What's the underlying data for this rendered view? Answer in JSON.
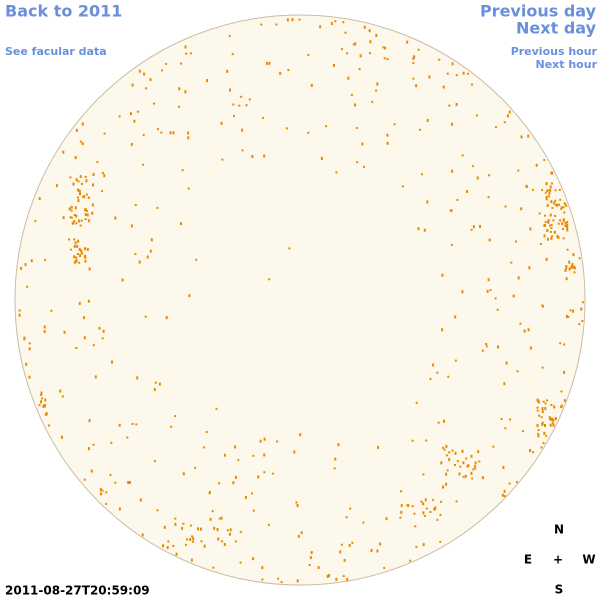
{
  "navigation": {
    "back": "Back to 2011",
    "facular": "See facular data",
    "previous_day": "Previous day",
    "next_day": "Next day",
    "previous_hour": "Previous hour",
    "next_hour": "Next hour"
  },
  "timestamp": "2011-08-27T20:59:09",
  "compass": {
    "north": "N",
    "east": "E",
    "center": "+",
    "west": "W",
    "south": "S"
  }
}
